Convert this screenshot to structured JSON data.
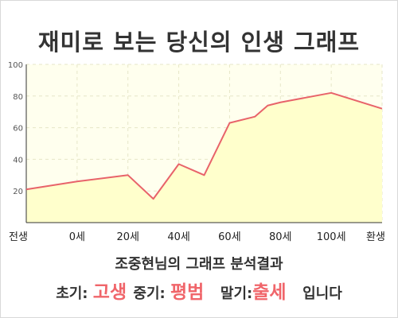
{
  "page": {
    "title": "재미로 보는 당신의 인생 그래프"
  },
  "result": {
    "heading": "조중현님의 그래프 분석결과",
    "early_label": "초기:",
    "early_value": "고생",
    "mid_label": "중기:",
    "mid_value": "평범",
    "late_label": "말기:",
    "late_value": "출세",
    "suffix": "입니다"
  },
  "chart_data": {
    "type": "area",
    "title": "재미로 보는 당신의 인생 그래프",
    "xlabel": "",
    "ylabel": "",
    "x_tick_labels": [
      "전생",
      "0세",
      "20세",
      "40세",
      "60세",
      "80세",
      "100세",
      "환생"
    ],
    "x": [
      -20,
      0,
      20,
      30,
      40,
      50,
      60,
      70,
      75,
      80,
      100,
      120
    ],
    "values": [
      21,
      26,
      30,
      15,
      37,
      30,
      63,
      67,
      74,
      76,
      82,
      72
    ],
    "y_ticks": [
      20,
      40,
      60,
      80,
      100
    ],
    "ylim": [
      0,
      100
    ],
    "xlim": [
      -20,
      120
    ],
    "grid": true,
    "colors": {
      "line": "#e8636a",
      "fill": "#ffffcc",
      "grid": "#e6e6c8",
      "highlight": "#f0656a"
    }
  }
}
